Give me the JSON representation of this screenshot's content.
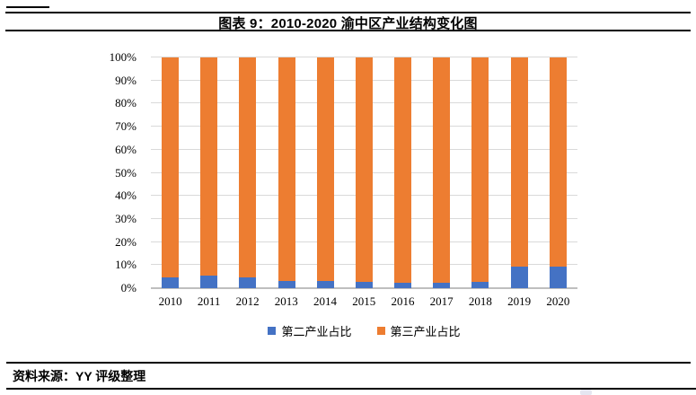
{
  "header": {
    "title": "图表 9：2010-2020 渝中区产业结构变化图"
  },
  "chart_data": {
    "type": "bar",
    "subtype": "stacked-100-percent-column",
    "title": "图表 9：2010-2020 渝中区产业结构变化图",
    "categories": [
      "2010",
      "2011",
      "2012",
      "2013",
      "2014",
      "2015",
      "2016",
      "2017",
      "2018",
      "2019",
      "2020"
    ],
    "series": [
      {
        "name": "第二产业占比",
        "color": "#4472C4",
        "values": [
          4.6,
          5.4,
          4.8,
          3.3,
          3.3,
          2.7,
          2.4,
          2.4,
          2.9,
          9.2,
          9.5
        ]
      },
      {
        "name": "第三产业占比",
        "color": "#ED7D31",
        "values": [
          95.4,
          94.6,
          95.2,
          96.7,
          96.7,
          97.3,
          97.6,
          97.6,
          97.1,
          90.8,
          90.5
        ]
      }
    ],
    "xlabel": "",
    "ylabel": "",
    "ylim": [
      0,
      100
    ],
    "y_ticks": [
      "0%",
      "10%",
      "20%",
      "30%",
      "40%",
      "50%",
      "60%",
      "70%",
      "80%",
      "90%",
      "100%"
    ],
    "grid": true,
    "gridline_color": "#D9D9D9",
    "legend_position": "bottom"
  },
  "footer": {
    "source": "资料来源：YY 评级整理"
  }
}
